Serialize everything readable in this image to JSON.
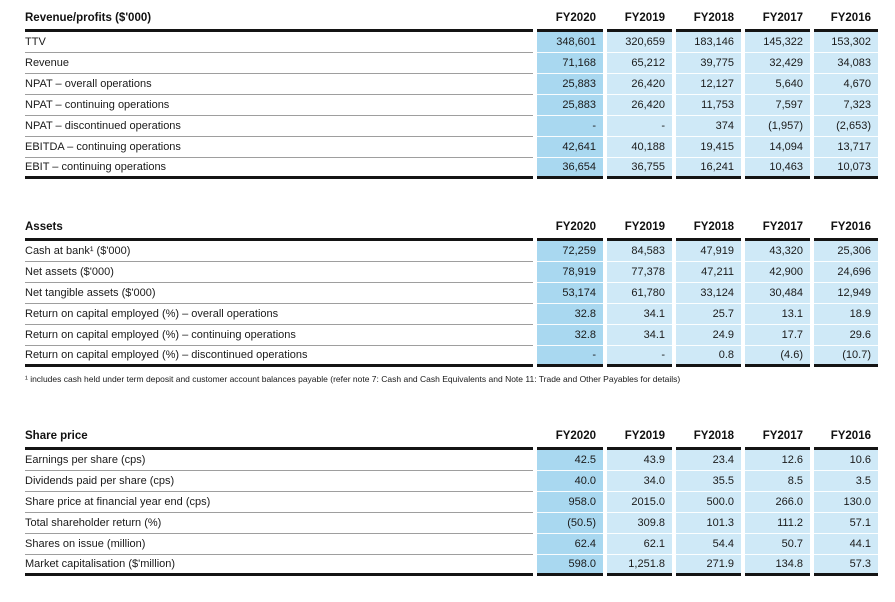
{
  "colors": {
    "fy2020_column": "#a9d8f0",
    "prior_year_column": "#cfe9f7",
    "rule_dark": "#141414",
    "rule_gray": "#9e9e9e"
  },
  "tables": [
    {
      "header_label": "Revenue/profits ($'000)",
      "year_headers": [
        "FY2020",
        "FY2019",
        "FY2018",
        "FY2017",
        "FY2016"
      ],
      "rows": [
        {
          "label": "TTV",
          "values": [
            "348,601",
            "320,659",
            "183,146",
            "145,322",
            "153,302"
          ]
        },
        {
          "label": "Revenue",
          "values": [
            "71,168",
            "65,212",
            "39,775",
            "32,429",
            "34,083"
          ]
        },
        {
          "label": "NPAT – overall operations",
          "values": [
            "25,883",
            "26,420",
            "12,127",
            "5,640",
            "4,670"
          ]
        },
        {
          "label": "NPAT – continuing operations",
          "values": [
            "25,883",
            "26,420",
            "11,753",
            "7,597",
            "7,323"
          ]
        },
        {
          "label": "NPAT – discontinued operations",
          "values": [
            "-",
            "-",
            "374",
            "(1,957)",
            "(2,653)"
          ]
        },
        {
          "label": "EBITDA – continuing operations",
          "values": [
            "42,641",
            "40,188",
            "19,415",
            "14,094",
            "13,717"
          ]
        },
        {
          "label": "EBIT – continuing operations",
          "values": [
            "36,654",
            "36,755",
            "16,241",
            "10,463",
            "10,073"
          ]
        }
      ]
    },
    {
      "header_label": "Assets",
      "year_headers": [
        "FY2020",
        "FY2019",
        "FY2018",
        "FY2017",
        "FY2016"
      ],
      "rows": [
        {
          "label": "Cash at bank¹ ($'000)",
          "values": [
            "72,259",
            "84,583",
            "47,919",
            "43,320",
            "25,306"
          ]
        },
        {
          "label": "Net assets ($'000)",
          "values": [
            "78,919",
            "77,378",
            "47,211",
            "42,900",
            "24,696"
          ]
        },
        {
          "label": "Net tangible assets ($'000)",
          "values": [
            "53,174",
            "61,780",
            "33,124",
            "30,484",
            "12,949"
          ]
        },
        {
          "label": "Return on capital employed (%) – overall operations",
          "values": [
            "32.8",
            "34.1",
            "25.7",
            "13.1",
            "18.9"
          ]
        },
        {
          "label": "Return on capital employed (%) – continuing operations",
          "values": [
            "32.8",
            "34.1",
            "24.9",
            "17.7",
            "29.6"
          ]
        },
        {
          "label": "Return on capital employed (%) – discontinued operations",
          "values": [
            "-",
            "-",
            "0.8",
            "(4.6)",
            "(10.7)"
          ]
        }
      ],
      "footnote": "¹ includes cash held under term deposit and customer account balances payable (refer note 7: Cash and Cash Equivalents and Note 11: Trade and Other Payables for details)"
    },
    {
      "header_label": "Share price",
      "year_headers": [
        "FY2020",
        "FY2019",
        "FY2018",
        "FY2017",
        "FY2016"
      ],
      "rows": [
        {
          "label": "Earnings per share (cps)",
          "values": [
            "42.5",
            "43.9",
            "23.4",
            "12.6",
            "10.6"
          ]
        },
        {
          "label": "Dividends paid per share (cps)",
          "values": [
            "40.0",
            "34.0",
            "35.5",
            "8.5",
            "3.5"
          ]
        },
        {
          "label": "Share price at financial year end (cps)",
          "values": [
            "958.0",
            "2015.0",
            "500.0",
            "266.0",
            "130.0"
          ]
        },
        {
          "label": "Total shareholder return (%)",
          "values": [
            "(50.5)",
            "309.8",
            "101.3",
            "111.2",
            "57.1"
          ]
        },
        {
          "label": "Shares on issue (million)",
          "values": [
            "62.4",
            "62.1",
            "54.4",
            "50.7",
            "44.1"
          ]
        },
        {
          "label": "Market capitalisation ($'million)",
          "values": [
            "598.0",
            "1,251.8",
            "271.9",
            "134.8",
            "57.3"
          ]
        }
      ]
    }
  ]
}
